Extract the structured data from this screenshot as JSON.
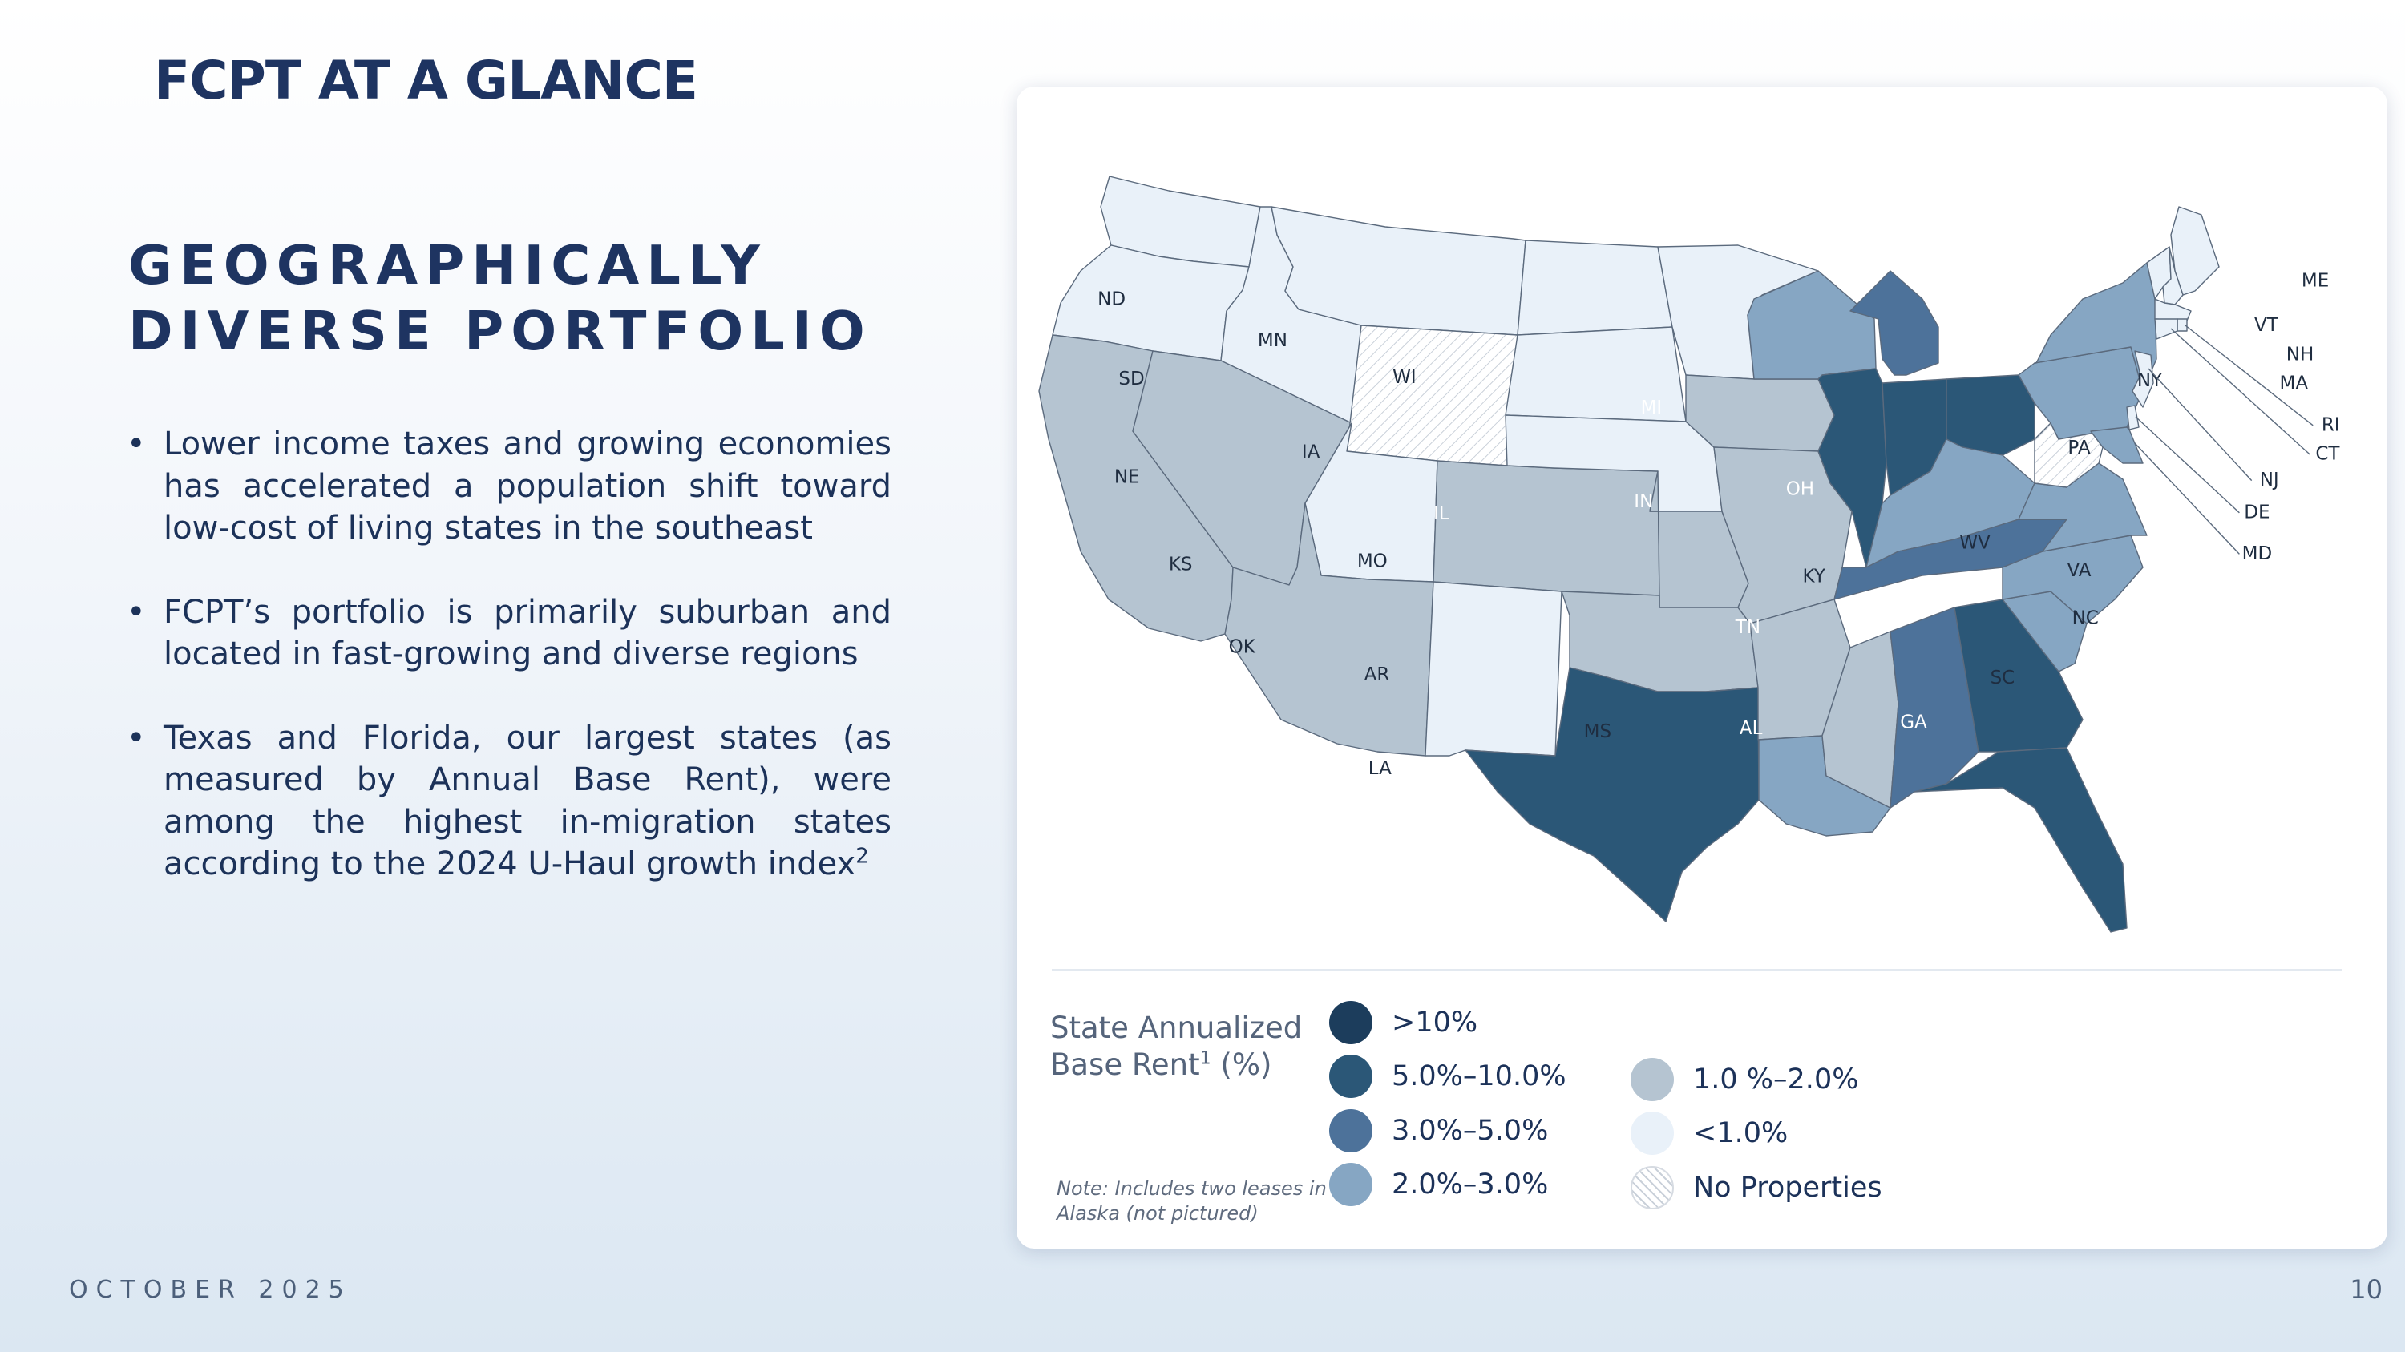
{
  "page": {
    "title": "FCPT AT A GLANCE",
    "heading_lines": [
      "GEOGRAPHICALLY",
      "DIVERSE PORTFOLIO"
    ],
    "bullets": [
      {
        "text": "Lower income taxes and growing economies has accelerated a population shift toward low-cost of living states in the southeast",
        "sup": ""
      },
      {
        "text": "FCPT’s portfolio is primarily suburban and located in fast-growing and diverse regions",
        "sup": ""
      },
      {
        "text": "Texas and Florida, our largest states (as measured by Annual Base Rent), were among the highest in-migration states according to the 2024 U-Haul growth index",
        "sup": "2"
      }
    ],
    "footer_date": "OCTOBER 2025",
    "page_number": "10"
  },
  "map": {
    "legend": {
      "title": "State Annualized Base Rent",
      "title_sup": "1",
      "title_suffix": " (%)",
      "note": "Note: Includes two leases in Alaska (not pictured)",
      "items": [
        {
          "key": "gt10",
          "label": ">10%",
          "color": "#1c3d5c"
        },
        {
          "key": "5to10",
          "label": "5.0%–10.0%",
          "color": "#2b5777"
        },
        {
          "key": "3to5",
          "label": "3.0%–5.0%",
          "color": "#4d729a"
        },
        {
          "key": "2to3",
          "label": "2.0%–3.0%",
          "color": "#86a6c3"
        },
        {
          "key": "1to2",
          "label": "1.0 %–2.0%",
          "color": "#b5c4d1"
        },
        {
          "key": "lt1",
          "label": "<1.0%",
          "color": "#e9f1f9"
        },
        {
          "key": "none",
          "label": "No Properties",
          "color": "#ffffff"
        }
      ]
    },
    "states": [
      {
        "abbr": "WA",
        "tier": "lt1"
      },
      {
        "abbr": "OR",
        "tier": "lt1"
      },
      {
        "abbr": "CA",
        "tier": "1to2"
      },
      {
        "abbr": "ID",
        "tier": "lt1"
      },
      {
        "abbr": "NV",
        "tier": "1to2"
      },
      {
        "abbr": "MT",
        "tier": "lt1"
      },
      {
        "abbr": "WY",
        "tier": "none"
      },
      {
        "abbr": "UT",
        "tier": "lt1"
      },
      {
        "abbr": "AZ",
        "tier": "1to2"
      },
      {
        "abbr": "CO",
        "tier": "1to2"
      },
      {
        "abbr": "NM",
        "tier": "lt1"
      },
      {
        "abbr": "ND",
        "tier": "lt1"
      },
      {
        "abbr": "SD",
        "tier": "lt1"
      },
      {
        "abbr": "NE",
        "tier": "lt1"
      },
      {
        "abbr": "KS",
        "tier": "1to2"
      },
      {
        "abbr": "OK",
        "tier": "1to2"
      },
      {
        "abbr": "TX",
        "tier": "5to10"
      },
      {
        "abbr": "MN",
        "tier": "lt1"
      },
      {
        "abbr": "IA",
        "tier": "1to2"
      },
      {
        "abbr": "MO",
        "tier": "1to2"
      },
      {
        "abbr": "AR",
        "tier": "1to2"
      },
      {
        "abbr": "LA",
        "tier": "2to3"
      },
      {
        "abbr": "WI",
        "tier": "2to3"
      },
      {
        "abbr": "IL",
        "tier": "5to10"
      },
      {
        "abbr": "MI",
        "tier": "3to5"
      },
      {
        "abbr": "IN",
        "tier": "5to10"
      },
      {
        "abbr": "OH",
        "tier": "5to10"
      },
      {
        "abbr": "KY",
        "tier": "2to3"
      },
      {
        "abbr": "TN",
        "tier": "3to5"
      },
      {
        "abbr": "MS",
        "tier": "1to2"
      },
      {
        "abbr": "AL",
        "tier": "3to5"
      },
      {
        "abbr": "GA",
        "tier": "5to10"
      },
      {
        "abbr": "FL",
        "tier": "5to10"
      },
      {
        "abbr": "SC",
        "tier": "2to3"
      },
      {
        "abbr": "NC",
        "tier": "2to3"
      },
      {
        "abbr": "VA",
        "tier": "2to3"
      },
      {
        "abbr": "WV",
        "tier": "none"
      },
      {
        "abbr": "PA",
        "tier": "2to3"
      },
      {
        "abbr": "NY",
        "tier": "2to3"
      },
      {
        "abbr": "ME",
        "tier": "lt1"
      },
      {
        "abbr": "VT",
        "tier": "lt1"
      },
      {
        "abbr": "NH",
        "tier": "lt1"
      },
      {
        "abbr": "MA",
        "tier": "lt1"
      },
      {
        "abbr": "RI",
        "tier": "lt1"
      },
      {
        "abbr": "CT",
        "tier": "lt1"
      },
      {
        "abbr": "NJ",
        "tier": "lt1"
      },
      {
        "abbr": "DE",
        "tier": "lt1"
      },
      {
        "abbr": "MD",
        "tier": "2to3"
      }
    ]
  }
}
